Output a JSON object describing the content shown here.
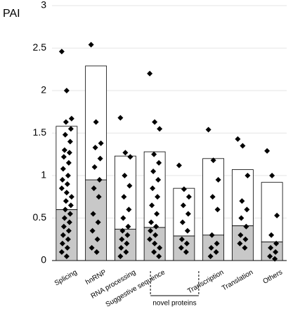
{
  "chart_data": {
    "type": "bar",
    "ylabel": "PAI",
    "categories": [
      "Splicing",
      "hnRNP",
      "RNA processing",
      "Suggestive sequence",
      null,
      "Transcription",
      "Translation",
      "Others"
    ],
    "series": [
      {
        "color": "#c8c8c8",
        "values": [
          0.6,
          0.95,
          0.37,
          0.39,
          0.29,
          0.3,
          0.41,
          0.22
        ]
      },
      {
        "color": "#ffffff",
        "values": [
          0.98,
          1.34,
          0.86,
          0.89,
          0.56,
          0.9,
          0.66,
          0.7
        ]
      }
    ],
    "points": [
      [
        2.46,
        2.0,
        1.67,
        1.63,
        1.55,
        1.48,
        1.4,
        1.3,
        1.27,
        1.22,
        1.15,
        1.08,
        1.0,
        0.95,
        0.9,
        0.85,
        0.8,
        0.75,
        0.7,
        0.65,
        0.6,
        0.55,
        0.5,
        0.45,
        0.4,
        0.35,
        0.3,
        0.25,
        0.2,
        0.15,
        0.1,
        0.05
      ],
      [
        2.54,
        1.63,
        1.38,
        1.33,
        1.2,
        1.1,
        0.95,
        0.85,
        0.75,
        0.55,
        0.45,
        0.35,
        0.25,
        0.15,
        0.1
      ],
      [
        1.68,
        1.27,
        1.22,
        1.0,
        0.88,
        0.75,
        0.6,
        0.5,
        0.4,
        0.35,
        0.3,
        0.25,
        0.2,
        0.15,
        0.1,
        0.05
      ],
      [
        2.2,
        1.63,
        1.55,
        1.25,
        1.15,
        1.05,
        0.95,
        0.85,
        0.75,
        0.65,
        0.55,
        0.45,
        0.4,
        0.35,
        0.3,
        0.25,
        0.2,
        0.15,
        0.1,
        0.05
      ],
      [
        1.12,
        0.84,
        0.75,
        0.65,
        0.55,
        0.45,
        0.35,
        0.25,
        0.2,
        0.15,
        0.1
      ],
      [
        1.54,
        1.18,
        0.95,
        0.75,
        0.6,
        0.3,
        0.2,
        0.15,
        0.1,
        0.05
      ],
      [
        1.43,
        1.35,
        1.0,
        0.7,
        0.6,
        0.5,
        0.4,
        0.3,
        0.25,
        0.2,
        0.15
      ],
      [
        1.29,
        1.0,
        0.53,
        0.3,
        0.2,
        0.15,
        0.1,
        0.05,
        0.02
      ]
    ],
    "point_color": "#000000",
    "annotation": "novel proteins",
    "ylim": [
      0,
      3
    ],
    "yticks": [
      0,
      0.5,
      1,
      1.5,
      2,
      2.5,
      3
    ],
    "grid": true
  }
}
